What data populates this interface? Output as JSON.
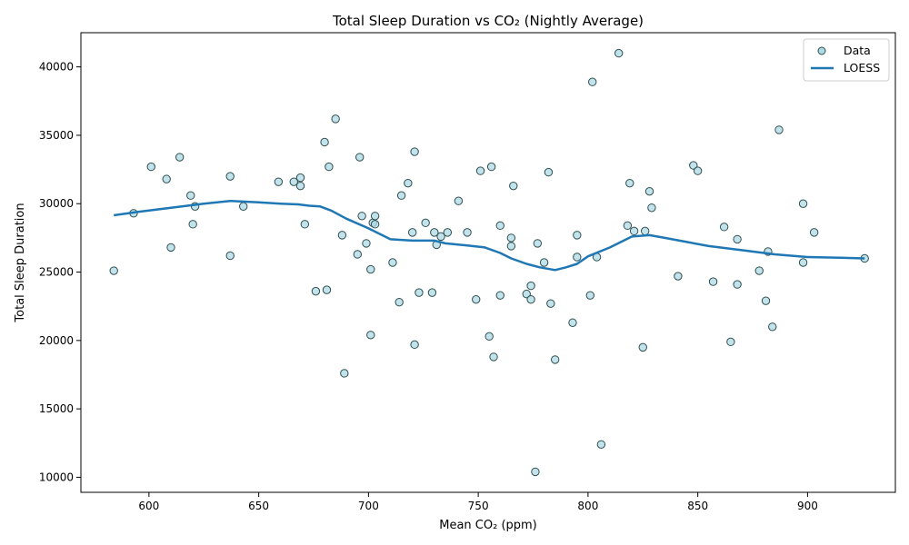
{
  "chart_data": {
    "type": "scatter",
    "title": "Total Sleep Duration vs CO₂ (Nightly Average)",
    "xlabel": "Mean CO₂ (ppm)",
    "ylabel": "Total Sleep Duration",
    "xlim": [
      569,
      940
    ],
    "ylim": [
      8900,
      42500
    ],
    "xticks": [
      600,
      650,
      700,
      750,
      800,
      850,
      900
    ],
    "yticks": [
      10000,
      15000,
      20000,
      25000,
      30000,
      35000,
      40000
    ],
    "grid": false,
    "legend_position": "top-right",
    "legend": [
      "Data",
      "LOESS"
    ],
    "colors": {
      "marker_fill": "#add8e6",
      "marker_edge": "#2f4f4f",
      "loess_line": "#1f77b4"
    },
    "series": [
      {
        "name": "Data",
        "kind": "scatter",
        "points": [
          [
            584,
            25100
          ],
          [
            593,
            29300
          ],
          [
            601,
            32700
          ],
          [
            608,
            31800
          ],
          [
            610,
            26800
          ],
          [
            614,
            33400
          ],
          [
            619,
            30600
          ],
          [
            620,
            28500
          ],
          [
            621,
            29800
          ],
          [
            637,
            32000
          ],
          [
            637,
            26200
          ],
          [
            643,
            29800
          ],
          [
            659,
            31600
          ],
          [
            666,
            31600
          ],
          [
            669,
            31900
          ],
          [
            669,
            31300
          ],
          [
            671,
            28500
          ],
          [
            676,
            23600
          ],
          [
            680,
            34500
          ],
          [
            681,
            23700
          ],
          [
            682,
            32700
          ],
          [
            685,
            36200
          ],
          [
            688,
            27700
          ],
          [
            689,
            17600
          ],
          [
            695,
            26300
          ],
          [
            696,
            33400
          ],
          [
            697,
            29100
          ],
          [
            699,
            27100
          ],
          [
            701,
            25200
          ],
          [
            701,
            20400
          ],
          [
            702,
            28600
          ],
          [
            703,
            29100
          ],
          [
            703,
            28500
          ],
          [
            711,
            25700
          ],
          [
            714,
            22800
          ],
          [
            715,
            30600
          ],
          [
            718,
            31500
          ],
          [
            720,
            27900
          ],
          [
            721,
            33800
          ],
          [
            721,
            19700
          ],
          [
            723,
            23500
          ],
          [
            726,
            28600
          ],
          [
            729,
            23500
          ],
          [
            730,
            27900
          ],
          [
            731,
            27000
          ],
          [
            733,
            27600
          ],
          [
            736,
            27900
          ],
          [
            741,
            30200
          ],
          [
            745,
            27900
          ],
          [
            749,
            23000
          ],
          [
            751,
            32400
          ],
          [
            755,
            20300
          ],
          [
            756,
            32700
          ],
          [
            757,
            18800
          ],
          [
            760,
            23300
          ],
          [
            760,
            28400
          ],
          [
            765,
            27500
          ],
          [
            765,
            26900
          ],
          [
            766,
            31300
          ],
          [
            772,
            23400
          ],
          [
            774,
            24000
          ],
          [
            774,
            23000
          ],
          [
            776,
            10400
          ],
          [
            777,
            27100
          ],
          [
            780,
            25700
          ],
          [
            782,
            32300
          ],
          [
            783,
            22700
          ],
          [
            785,
            18600
          ],
          [
            793,
            21300
          ],
          [
            795,
            27700
          ],
          [
            795,
            26100
          ],
          [
            801,
            23300
          ],
          [
            802,
            38900
          ],
          [
            804,
            26100
          ],
          [
            806,
            12400
          ],
          [
            814,
            41000
          ],
          [
            818,
            28400
          ],
          [
            819,
            31500
          ],
          [
            821,
            28000
          ],
          [
            825,
            19500
          ],
          [
            826,
            28000
          ],
          [
            828,
            30900
          ],
          [
            829,
            29700
          ],
          [
            841,
            24700
          ],
          [
            848,
            32800
          ],
          [
            850,
            32400
          ],
          [
            857,
            24300
          ],
          [
            862,
            28300
          ],
          [
            865,
            19900
          ],
          [
            868,
            27400
          ],
          [
            868,
            24100
          ],
          [
            878,
            25100
          ],
          [
            881,
            22900
          ],
          [
            882,
            26500
          ],
          [
            884,
            21000
          ],
          [
            887,
            35400
          ],
          [
            898,
            30000
          ],
          [
            898,
            25700
          ],
          [
            903,
            27900
          ],
          [
            926,
            26000
          ]
        ]
      },
      {
        "name": "LOESS",
        "kind": "line",
        "points": [
          [
            584,
            29150
          ],
          [
            595,
            29400
          ],
          [
            610,
            29700
          ],
          [
            625,
            30000
          ],
          [
            637,
            30200
          ],
          [
            650,
            30100
          ],
          [
            660,
            30000
          ],
          [
            668,
            29950
          ],
          [
            673,
            29850
          ],
          [
            678,
            29800
          ],
          [
            683,
            29500
          ],
          [
            690,
            28900
          ],
          [
            700,
            28200
          ],
          [
            710,
            27400
          ],
          [
            720,
            27300
          ],
          [
            730,
            27300
          ],
          [
            735,
            27100
          ],
          [
            745,
            26950
          ],
          [
            753,
            26800
          ],
          [
            760,
            26400
          ],
          [
            765,
            26000
          ],
          [
            772,
            25600
          ],
          [
            778,
            25350
          ],
          [
            785,
            25150
          ],
          [
            790,
            25350
          ],
          [
            795,
            25600
          ],
          [
            800,
            26150
          ],
          [
            810,
            26800
          ],
          [
            820,
            27600
          ],
          [
            828,
            27700
          ],
          [
            835,
            27500
          ],
          [
            845,
            27200
          ],
          [
            855,
            26900
          ],
          [
            870,
            26600
          ],
          [
            885,
            26300
          ],
          [
            900,
            26100
          ],
          [
            915,
            26050
          ],
          [
            926,
            26000
          ]
        ]
      }
    ]
  }
}
